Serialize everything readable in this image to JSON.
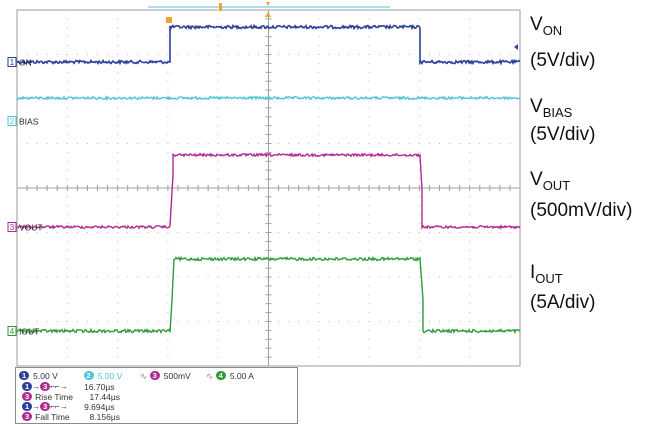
{
  "channels": [
    {
      "id": "1",
      "name": "ON",
      "color": "#2b3f9c",
      "label_main": "V",
      "label_sub": "ON",
      "scale": "(5V/div)"
    },
    {
      "id": "2",
      "name": "BIAS",
      "color": "#4fc3dc",
      "label_main": "V",
      "label_sub": "BIAS",
      "scale": "(5V/div)"
    },
    {
      "id": "3",
      "name": "VOUT",
      "color": "#b02a8f",
      "label_main": "V",
      "label_sub": "OUT",
      "scale": "(500mV/div)"
    },
    {
      "id": "4",
      "name": "IOUT",
      "color": "#2d9b3a",
      "label_main": "I",
      "label_sub": "OUT",
      "scale": "(5A/div)"
    }
  ],
  "settings": {
    "ch1": "5.00 V",
    "ch2": "5.00 V",
    "ch3": "500mV",
    "ch4": "5.00 A"
  },
  "measurements": [
    {
      "label": "",
      "value": "16.70µs"
    },
    {
      "label": "Rise Time",
      "value": "17.44µs"
    },
    {
      "label": "",
      "value": "9.694µs"
    },
    {
      "label": "Fall Time",
      "value": "8.156µs"
    }
  ]
}
